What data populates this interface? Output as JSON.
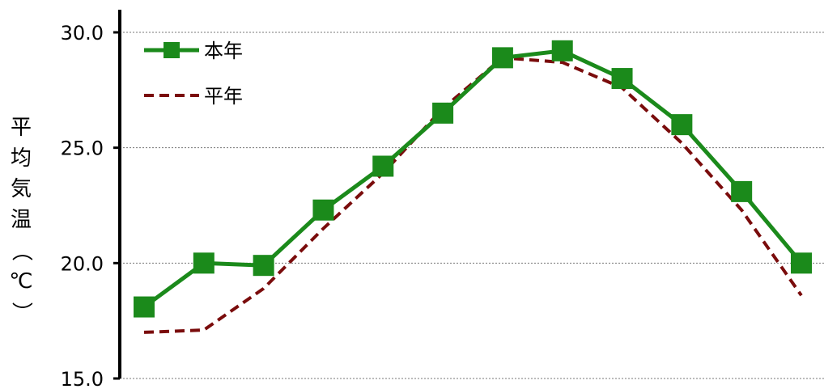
{
  "chart_data": {
    "type": "line",
    "title": "",
    "xlabel": "",
    "ylabel": "平均気温（℃）",
    "ylim": [
      15,
      30
    ],
    "yticks": [
      15,
      20,
      25,
      30
    ],
    "ytick_labels": [
      "15.0",
      "20.0",
      "25.0",
      "30.0"
    ],
    "grid": true,
    "legend_position": "top-left",
    "x": [
      1,
      2,
      3,
      4,
      5,
      6,
      7,
      8,
      9,
      10,
      11,
      12
    ],
    "series": [
      {
        "name": "本年",
        "style": "solid-square-markers",
        "color": "#1b8a1b",
        "values": [
          18.1,
          20.0,
          19.9,
          22.3,
          24.2,
          26.5,
          28.9,
          29.2,
          28.0,
          26.0,
          23.1,
          20.0
        ]
      },
      {
        "name": "平年",
        "style": "dashed",
        "color": "#7a0c0c",
        "values": [
          17.0,
          17.1,
          18.9,
          21.5,
          23.9,
          26.7,
          28.9,
          28.7,
          27.6,
          25.2,
          22.3,
          18.6
        ]
      }
    ]
  }
}
